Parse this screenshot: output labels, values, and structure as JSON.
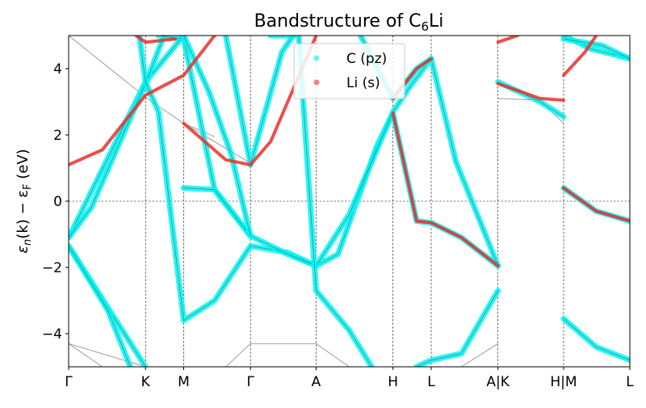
{
  "chart_data": {
    "type": "line",
    "title_main": "Bandstructure of C",
    "title_sub": "6",
    "title_tail": "Li",
    "ylabel_parts": [
      "ε",
      "n",
      "(k) − ε",
      "F",
      " (eV)"
    ],
    "ylim": [
      -5,
      5
    ],
    "yticks": [
      -4,
      -2,
      0,
      2,
      4
    ],
    "ytick_labels": [
      "−4",
      "−2",
      "0",
      "2",
      "4"
    ],
    "kpath": [
      {
        "label": "Γ",
        "pos": 0.0
      },
      {
        "label": "K",
        "pos": 0.137
      },
      {
        "label": "M",
        "pos": 0.205
      },
      {
        "label": "Γ",
        "pos": 0.324
      },
      {
        "label": "A",
        "pos": 0.441
      },
      {
        "label": "H",
        "pos": 0.578
      },
      {
        "label": "L",
        "pos": 0.646
      },
      {
        "label": "A|K",
        "pos": 0.765
      },
      {
        "label": "H|M",
        "pos": 0.882
      },
      {
        "label": "L",
        "pos": 1.0
      }
    ],
    "fermi_level": 0,
    "grid": true,
    "legend_position": "top-center",
    "series": [
      {
        "name": "C (pz)",
        "color": "#00f5f5",
        "marker": "circle",
        "alpha": 0.55
      },
      {
        "name": "Li (s)",
        "color": "#e8302c",
        "marker": "circle",
        "alpha": 0.65
      }
    ],
    "bands": {
      "thin": [
        [
          [
            0.0,
            5.0
          ],
          [
            0.14,
            3.1
          ],
          [
            0.205,
            2.35
          ],
          [
            0.26,
            1.95
          ]
        ],
        [
          [
            0.205,
            2.35
          ],
          [
            0.324,
            1.15
          ]
        ],
        [
          [
            0.765,
            3.1
          ],
          [
            0.84,
            3.05
          ],
          [
            0.882,
            2.35
          ]
        ],
        [
          [
            0.0,
            -4.3
          ],
          [
            0.137,
            -5.0
          ]
        ],
        [
          [
            0.0,
            -4.3
          ],
          [
            0.06,
            -5.0
          ]
        ],
        [
          [
            0.28,
            -5.0
          ],
          [
            0.324,
            -4.3
          ],
          [
            0.441,
            -4.3
          ],
          [
            0.5,
            -5.0
          ]
        ],
        [
          [
            0.7,
            -5.0
          ],
          [
            0.765,
            -4.3
          ]
        ]
      ],
      "cyan": [
        [
          [
            0.0,
            -1.1
          ],
          [
            0.137,
            3.6
          ],
          [
            0.205,
            5.0
          ]
        ],
        [
          [
            0.0,
            -1.1
          ],
          [
            0.04,
            -0.2
          ],
          [
            0.137,
            3.55
          ],
          [
            0.17,
            5.0
          ]
        ],
        [
          [
            0.0,
            -1.35
          ],
          [
            0.137,
            -5.0
          ]
        ],
        [
          [
            0.0,
            -1.35
          ],
          [
            0.07,
            -3.3
          ],
          [
            0.11,
            -5.0
          ]
        ],
        [
          [
            0.126,
            5.0
          ],
          [
            0.137,
            3.6
          ],
          [
            0.16,
            2.7
          ],
          [
            0.205,
            -3.6
          ],
          [
            0.26,
            -3.0
          ],
          [
            0.324,
            -1.35
          ],
          [
            0.39,
            -1.55
          ],
          [
            0.441,
            -1.95
          ],
          [
            0.48,
            -1.6
          ],
          [
            0.55,
            1.7
          ],
          [
            0.578,
            2.65
          ],
          [
            0.62,
            -0.6
          ],
          [
            0.646,
            -0.65
          ],
          [
            0.7,
            -1.1
          ],
          [
            0.765,
            -1.95
          ]
        ],
        [
          [
            0.16,
            5.0
          ],
          [
            0.205,
            4.9
          ],
          [
            0.26,
            0.35
          ],
          [
            0.324,
            -1.05
          ],
          [
            0.39,
            -1.6
          ],
          [
            0.441,
            -1.95
          ],
          [
            0.5,
            -0.4
          ],
          [
            0.578,
            2.7
          ],
          [
            0.61,
            3.5
          ],
          [
            0.646,
            4.3
          ],
          [
            0.69,
            1.2
          ],
          [
            0.765,
            -1.95
          ]
        ],
        [
          [
            0.205,
            0.4
          ],
          [
            0.26,
            0.35
          ],
          [
            0.324,
            -1.05
          ]
        ],
        [
          [
            0.205,
            5.0
          ],
          [
            0.25,
            3.3
          ],
          [
            0.29,
            1.4
          ],
          [
            0.324,
            -1.05
          ]
        ],
        [
          [
            0.28,
            5.0
          ],
          [
            0.324,
            1.1
          ],
          [
            0.38,
            4.5
          ],
          [
            0.4,
            5.0
          ]
        ],
        [
          [
            0.36,
            5.0
          ],
          [
            0.41,
            5.0
          ],
          [
            0.441,
            -2.7
          ],
          [
            0.5,
            -3.9
          ],
          [
            0.54,
            -5.0
          ]
        ],
        [
          [
            0.52,
            5.0
          ],
          [
            0.578,
            3.1
          ],
          [
            0.62,
            4.0
          ],
          [
            0.646,
            4.3
          ]
        ],
        [
          [
            0.62,
            -5.0
          ],
          [
            0.646,
            -4.8
          ],
          [
            0.7,
            -4.6
          ],
          [
            0.765,
            -2.7
          ]
        ],
        [
          [
            0.765,
            3.6
          ],
          [
            0.84,
            3.0
          ],
          [
            0.882,
            2.55
          ]
        ],
        [
          [
            0.882,
            5.0
          ],
          [
            0.93,
            4.6
          ],
          [
            1.0,
            4.3
          ]
        ],
        [
          [
            0.882,
            4.9
          ],
          [
            0.95,
            4.7
          ],
          [
            1.0,
            4.3
          ]
        ],
        [
          [
            0.882,
            0.4
          ],
          [
            0.94,
            -0.3
          ],
          [
            1.0,
            -0.6
          ]
        ],
        [
          [
            0.882,
            -3.55
          ],
          [
            0.94,
            -4.4
          ],
          [
            1.0,
            -4.8
          ]
        ]
      ],
      "red": [
        [
          [
            0.0,
            1.1
          ],
          [
            0.06,
            1.55
          ],
          [
            0.137,
            3.2
          ],
          [
            0.205,
            3.8
          ],
          [
            0.26,
            5.0
          ]
        ],
        [
          [
            0.12,
            5.0
          ],
          [
            0.137,
            4.8
          ],
          [
            0.19,
            4.9
          ]
        ],
        [
          [
            0.205,
            2.35
          ],
          [
            0.28,
            1.25
          ],
          [
            0.324,
            1.1
          ],
          [
            0.36,
            1.8
          ],
          [
            0.441,
            5.0
          ]
        ],
        [
          [
            0.578,
            2.65
          ],
          [
            0.62,
            -0.6
          ],
          [
            0.646,
            -0.65
          ],
          [
            0.7,
            -1.1
          ],
          [
            0.765,
            -1.95
          ]
        ],
        [
          [
            0.578,
            3.1
          ],
          [
            0.62,
            4.0
          ],
          [
            0.646,
            4.3
          ]
        ],
        [
          [
            0.765,
            4.8
          ],
          [
            0.8,
            5.0
          ]
        ],
        [
          [
            0.765,
            3.55
          ],
          [
            0.84,
            3.1
          ],
          [
            0.882,
            3.05
          ]
        ],
        [
          [
            0.882,
            3.8
          ],
          [
            0.92,
            4.5
          ],
          [
            0.94,
            5.0
          ]
        ],
        [
          [
            0.882,
            0.4
          ],
          [
            0.94,
            -0.3
          ],
          [
            1.0,
            -0.6
          ]
        ]
      ]
    }
  }
}
